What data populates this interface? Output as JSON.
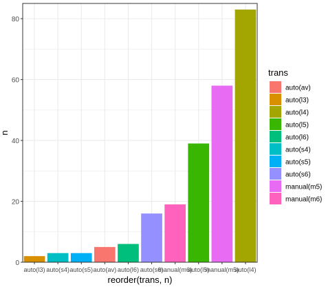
{
  "chart_data": {
    "type": "bar",
    "title": "",
    "xlabel": "reorder(trans, n)",
    "ylabel": "n",
    "ylim": [
      0,
      85
    ],
    "yticks": [
      0,
      20,
      40,
      60,
      80
    ],
    "grid": true,
    "categories": [
      "auto(l3)",
      "auto(s4)",
      "auto(s5)",
      "auto(av)",
      "auto(l6)",
      "auto(s6)",
      "manual(m6)",
      "auto(l5)",
      "manual(m5)",
      "auto(l4)"
    ],
    "values": [
      2,
      3,
      3,
      5,
      6,
      16,
      19,
      39,
      58,
      83
    ],
    "legend": {
      "title": "trans",
      "position": "right",
      "entries": [
        {
          "label": "auto(av)",
          "color": "#F8766D"
        },
        {
          "label": "auto(l3)",
          "color": "#D89000"
        },
        {
          "label": "auto(l4)",
          "color": "#A3A500"
        },
        {
          "label": "auto(l5)",
          "color": "#39B600"
        },
        {
          "label": "auto(l6)",
          "color": "#00BF7D"
        },
        {
          "label": "auto(s4)",
          "color": "#00BFC4"
        },
        {
          "label": "auto(s5)",
          "color": "#00B0F6"
        },
        {
          "label": "auto(s6)",
          "color": "#9590FF"
        },
        {
          "label": "manual(m5)",
          "color": "#E76BF3"
        },
        {
          "label": "manual(m6)",
          "color": "#FF62BC"
        }
      ]
    }
  }
}
